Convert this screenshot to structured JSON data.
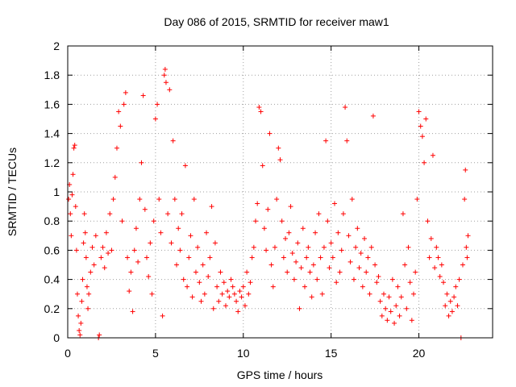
{
  "chart_data": {
    "type": "scatter",
    "title": "Day 086 of 2015, SRMTID for receiver maw1",
    "xlabel": "GPS time / hours",
    "ylabel": "SRMTID / TECUs",
    "xlim": [
      0,
      24.2
    ],
    "ylim": [
      0,
      2
    ],
    "x_ticks": [
      0,
      5,
      10,
      15,
      20
    ],
    "x_tick_labels": [
      "0",
      "5",
      "10",
      "15",
      "20"
    ],
    "y_ticks": [
      0,
      0.2,
      0.4,
      0.6,
      0.8,
      1,
      1.2,
      1.4,
      1.6,
      1.8,
      2
    ],
    "y_tick_labels": [
      "0",
      "0.2",
      "0.4",
      "0.6",
      "0.8",
      "1",
      "1.2",
      "1.4",
      "1.6",
      "1.8",
      "2"
    ],
    "grid": true,
    "marker": "plus",
    "color": "#ff0000",
    "series": [
      {
        "name": "SRMTID",
        "points": [
          [
            0.05,
            0.95
          ],
          [
            0.1,
            1.05
          ],
          [
            0.15,
            0.85
          ],
          [
            0.2,
            0.7
          ],
          [
            0.25,
            0.98
          ],
          [
            0.3,
            1.12
          ],
          [
            0.35,
            1.3
          ],
          [
            0.4,
            1.32
          ],
          [
            0.45,
            0.9
          ],
          [
            0.5,
            0.6
          ],
          [
            0.55,
            0.3
          ],
          [
            0.6,
            0.15
          ],
          [
            0.65,
            0.05
          ],
          [
            0.7,
            0.02
          ],
          [
            0.75,
            0.1
          ],
          [
            0.8,
            0.25
          ],
          [
            0.85,
            0.4
          ],
          [
            0.9,
            0.65
          ],
          [
            0.95,
            0.85
          ],
          [
            1.0,
            0.72
          ],
          [
            1.05,
            0.55
          ],
          [
            1.1,
            0.35
          ],
          [
            1.15,
            0.2
          ],
          [
            1.2,
            0.3
          ],
          [
            1.3,
            0.45
          ],
          [
            1.4,
            0.62
          ],
          [
            1.5,
            0.5
          ],
          [
            1.6,
            0.7
          ],
          [
            1.75,
            0.0
          ],
          [
            1.8,
            0.02
          ],
          [
            1.9,
            0.55
          ],
          [
            2.0,
            0.62
          ],
          [
            2.1,
            0.48
          ],
          [
            2.2,
            0.72
          ],
          [
            2.3,
            0.58
          ],
          [
            2.4,
            0.85
          ],
          [
            2.5,
            0.6
          ],
          [
            2.6,
            0.95
          ],
          [
            2.7,
            1.1
          ],
          [
            2.8,
            1.3
          ],
          [
            2.9,
            1.55
          ],
          [
            3.0,
            1.45
          ],
          [
            3.1,
            0.8
          ],
          [
            3.2,
            1.6
          ],
          [
            3.3,
            1.68
          ],
          [
            3.4,
            0.55
          ],
          [
            3.5,
            0.32
          ],
          [
            3.6,
            0.45
          ],
          [
            3.7,
            0.18
          ],
          [
            3.8,
            0.6
          ],
          [
            3.9,
            0.75
          ],
          [
            4.0,
            0.52
          ],
          [
            4.1,
            0.95
          ],
          [
            4.2,
            1.2
          ],
          [
            4.3,
            1.66
          ],
          [
            4.4,
            0.88
          ],
          [
            4.5,
            0.55
          ],
          [
            4.6,
            0.42
          ],
          [
            4.7,
            0.65
          ],
          [
            4.8,
            0.3
          ],
          [
            4.9,
            0.8
          ],
          [
            5.0,
            1.5
          ],
          [
            5.1,
            1.6
          ],
          [
            5.2,
            0.95
          ],
          [
            5.3,
            0.72
          ],
          [
            5.4,
            0.15
          ],
          [
            5.5,
            1.8
          ],
          [
            5.55,
            1.84
          ],
          [
            5.6,
            1.75
          ],
          [
            5.7,
            0.85
          ],
          [
            5.8,
            1.7
          ],
          [
            5.9,
            0.65
          ],
          [
            6.0,
            1.35
          ],
          [
            6.1,
            0.95
          ],
          [
            6.2,
            0.5
          ],
          [
            6.3,
            0.75
          ],
          [
            6.4,
            0.6
          ],
          [
            6.5,
            0.85
          ],
          [
            6.6,
            0.4
          ],
          [
            6.7,
            1.18
          ],
          [
            6.8,
            0.35
          ],
          [
            6.9,
            0.55
          ],
          [
            7.0,
            0.7
          ],
          [
            7.1,
            0.28
          ],
          [
            7.2,
            0.95
          ],
          [
            7.3,
            0.45
          ],
          [
            7.4,
            0.62
          ],
          [
            7.5,
            0.38
          ],
          [
            7.6,
            0.25
          ],
          [
            7.7,
            0.5
          ],
          [
            7.8,
            0.3
          ],
          [
            7.9,
            0.72
          ],
          [
            8.0,
            0.42
          ],
          [
            8.1,
            0.55
          ],
          [
            8.2,
            0.9
          ],
          [
            8.3,
            0.2
          ],
          [
            8.4,
            0.65
          ],
          [
            8.5,
            0.35
          ],
          [
            8.6,
            0.25
          ],
          [
            8.7,
            0.45
          ],
          [
            8.8,
            0.3
          ],
          [
            8.9,
            0.38
          ],
          [
            9.0,
            0.22
          ],
          [
            9.1,
            0.32
          ],
          [
            9.2,
            0.28
          ],
          [
            9.3,
            0.4
          ],
          [
            9.4,
            0.35
          ],
          [
            9.5,
            0.3
          ],
          [
            9.6,
            0.25
          ],
          [
            9.7,
            0.18
          ],
          [
            9.8,
            0.32
          ],
          [
            9.9,
            0.28
          ],
          [
            10.0,
            0.35
          ],
          [
            10.1,
            0.22
          ],
          [
            10.2,
            0.45
          ],
          [
            10.3,
            0.3
          ],
          [
            10.4,
            0.38
          ],
          [
            10.5,
            0.55
          ],
          [
            10.6,
            0.62
          ],
          [
            10.7,
            0.8
          ],
          [
            10.8,
            0.92
          ],
          [
            10.9,
            1.58
          ],
          [
            11.0,
            1.55
          ],
          [
            11.1,
            1.18
          ],
          [
            11.2,
            0.75
          ],
          [
            11.3,
            0.6
          ],
          [
            11.4,
            0.88
          ],
          [
            11.5,
            1.4
          ],
          [
            11.6,
            0.5
          ],
          [
            11.7,
            0.35
          ],
          [
            11.8,
            0.62
          ],
          [
            11.9,
            0.95
          ],
          [
            12.0,
            1.3
          ],
          [
            12.1,
            1.22
          ],
          [
            12.2,
            0.8
          ],
          [
            12.3,
            0.55
          ],
          [
            12.4,
            0.68
          ],
          [
            12.5,
            0.45
          ],
          [
            12.6,
            0.72
          ],
          [
            12.7,
            0.9
          ],
          [
            12.8,
            0.58
          ],
          [
            12.9,
            0.4
          ],
          [
            13.0,
            0.52
          ],
          [
            13.1,
            0.65
          ],
          [
            13.2,
            0.2
          ],
          [
            13.3,
            0.48
          ],
          [
            13.4,
            0.75
          ],
          [
            13.5,
            0.35
          ],
          [
            13.6,
            0.55
          ],
          [
            13.7,
            0.62
          ],
          [
            13.8,
            0.45
          ],
          [
            13.9,
            0.28
          ],
          [
            14.0,
            0.5
          ],
          [
            14.1,
            0.72
          ],
          [
            14.2,
            0.4
          ],
          [
            14.3,
            0.85
          ],
          [
            14.4,
            0.55
          ],
          [
            14.5,
            0.3
          ],
          [
            14.6,
            0.62
          ],
          [
            14.7,
            1.35
          ],
          [
            14.8,
            0.8
          ],
          [
            14.9,
            0.48
          ],
          [
            15.0,
            0.65
          ],
          [
            15.1,
            0.55
          ],
          [
            15.2,
            0.92
          ],
          [
            15.3,
            0.38
          ],
          [
            15.4,
            0.72
          ],
          [
            15.5,
            0.45
          ],
          [
            15.6,
            0.6
          ],
          [
            15.7,
            0.85
          ],
          [
            15.8,
            1.58
          ],
          [
            15.9,
            1.35
          ],
          [
            16.0,
            0.7
          ],
          [
            16.1,
            0.52
          ],
          [
            16.2,
            0.95
          ],
          [
            16.3,
            0.4
          ],
          [
            16.4,
            0.62
          ],
          [
            16.5,
            0.75
          ],
          [
            16.6,
            0.48
          ],
          [
            16.7,
            0.58
          ],
          [
            16.8,
            0.35
          ],
          [
            16.9,
            0.68
          ],
          [
            17.0,
            0.45
          ],
          [
            17.1,
            0.55
          ],
          [
            17.2,
            0.3
          ],
          [
            17.3,
            0.62
          ],
          [
            17.4,
            1.52
          ],
          [
            17.5,
            0.5
          ],
          [
            17.6,
            0.38
          ],
          [
            17.7,
            0.42
          ],
          [
            17.8,
            0.25
          ],
          [
            17.9,
            0.15
          ],
          [
            18.0,
            0.3
          ],
          [
            18.1,
            0.2
          ],
          [
            18.2,
            0.12
          ],
          [
            18.3,
            0.28
          ],
          [
            18.4,
            0.18
          ],
          [
            18.5,
            0.4
          ],
          [
            18.6,
            0.1
          ],
          [
            18.7,
            0.22
          ],
          [
            18.8,
            0.35
          ],
          [
            18.9,
            0.15
          ],
          [
            19.0,
            0.28
          ],
          [
            19.1,
            0.85
          ],
          [
            19.2,
            0.5
          ],
          [
            19.3,
            0.2
          ],
          [
            19.4,
            0.62
          ],
          [
            19.5,
            0.38
          ],
          [
            19.6,
            0.12
          ],
          [
            19.7,
            0.3
          ],
          [
            19.8,
            0.45
          ],
          [
            19.9,
            0.95
          ],
          [
            20.0,
            1.55
          ],
          [
            20.1,
            1.45
          ],
          [
            20.2,
            1.38
          ],
          [
            20.3,
            1.2
          ],
          [
            20.4,
            1.5
          ],
          [
            20.5,
            0.8
          ],
          [
            20.6,
            0.55
          ],
          [
            20.7,
            0.68
          ],
          [
            20.8,
            1.25
          ],
          [
            20.9,
            0.48
          ],
          [
            21.0,
            0.62
          ],
          [
            21.1,
            0.55
          ],
          [
            21.2,
            0.42
          ],
          [
            21.3,
            0.5
          ],
          [
            21.4,
            0.38
          ],
          [
            21.5,
            0.22
          ],
          [
            21.6,
            0.3
          ],
          [
            21.7,
            0.15
          ],
          [
            21.8,
            0.25
          ],
          [
            21.9,
            0.18
          ],
          [
            22.0,
            0.28
          ],
          [
            22.1,
            0.35
          ],
          [
            22.2,
            0.22
          ],
          [
            22.3,
            0.4
          ],
          [
            22.4,
            0.0
          ],
          [
            22.5,
            0.5
          ],
          [
            22.6,
            0.95
          ],
          [
            22.65,
            1.15
          ],
          [
            22.7,
            0.62
          ],
          [
            22.75,
            0.55
          ],
          [
            22.8,
            0.7
          ]
        ]
      }
    ]
  }
}
